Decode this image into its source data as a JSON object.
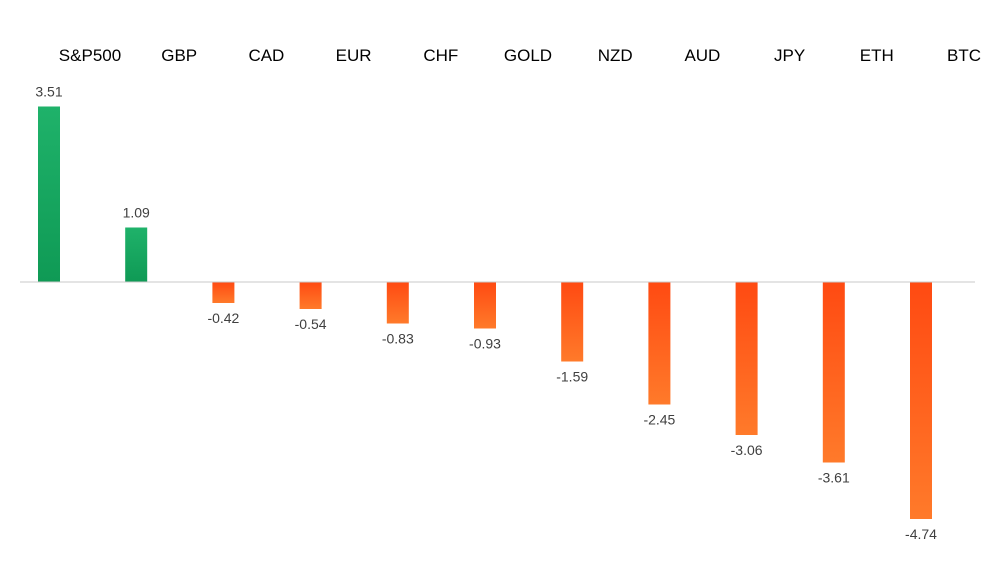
{
  "chart_data": {
    "type": "bar",
    "title": "",
    "xlabel": "",
    "ylabel": "",
    "categories": [
      "S&P500",
      "GBP",
      "CAD",
      "EUR",
      "CHF",
      "GOLD",
      "NZD",
      "AUD",
      "JPY",
      "ETH",
      "BTC"
    ],
    "values": [
      3.51,
      1.09,
      -0.42,
      -0.54,
      -0.83,
      -0.93,
      -1.59,
      -2.45,
      -3.06,
      -3.61,
      -4.74
    ],
    "value_labels": [
      "3.51",
      "1.09",
      "-0.42",
      "-0.54",
      "-0.83",
      "-0.93",
      "-1.59",
      "-2.45",
      "-3.06",
      "-3.61",
      "-4.74"
    ],
    "ylim": [
      -4.74,
      3.51
    ],
    "grid": false,
    "legend": "none",
    "colors": {
      "positive_top": "#1fb26a",
      "positive_bottom": "#0f9a55",
      "negative_top": "#ff4a12",
      "negative_bottom": "#ff7a2a",
      "axis": "#c8c8c8"
    }
  }
}
